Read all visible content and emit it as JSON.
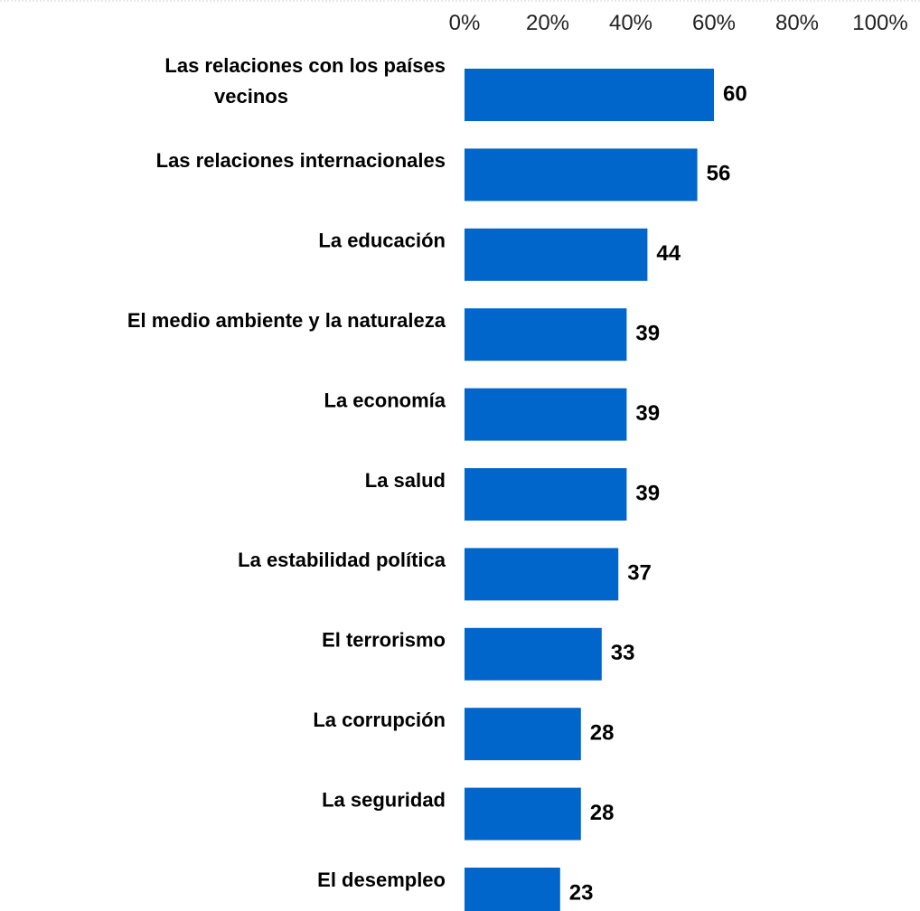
{
  "chart_data": {
    "type": "bar",
    "orientation": "horizontal",
    "title": "",
    "xlabel": "",
    "ylabel": "",
    "xlim": [
      0,
      100
    ],
    "x_tick_labels": [
      "0%",
      "20%",
      "40%",
      "60%",
      "80%",
      "100%"
    ],
    "x_ticks": [
      0,
      20,
      40,
      60,
      80,
      100
    ],
    "x_axis_position": "top",
    "grid": false,
    "legend": "none",
    "bar_color": "#0066CC",
    "categories": [
      [
        "Las relaciones con los países",
        "vecinos"
      ],
      [
        "Las relaciones internacionales"
      ],
      [
        "La educación"
      ],
      [
        "El medio ambiente y la naturaleza"
      ],
      [
        "La economía"
      ],
      [
        "La salud"
      ],
      [
        "La estabilidad política"
      ],
      [
        "El terrorismo"
      ],
      [
        "La corrupción"
      ],
      [
        "La seguridad"
      ],
      [
        "El desempleo"
      ]
    ],
    "values": [
      60,
      56,
      44,
      39,
      39,
      39,
      37,
      33,
      28,
      28,
      23
    ],
    "data_labels": [
      "60",
      "56",
      "44",
      "39",
      "39",
      "39",
      "37",
      "33",
      "28",
      "28",
      "23"
    ]
  }
}
